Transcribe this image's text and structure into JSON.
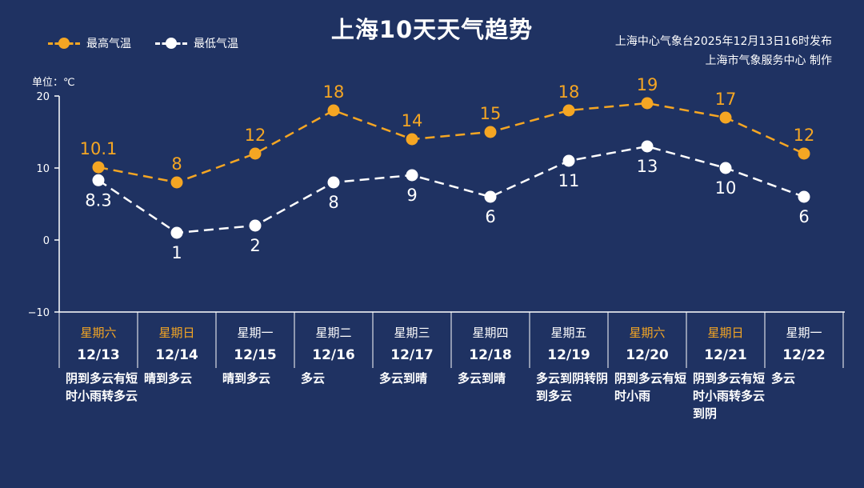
{
  "title": "上海10天天气趋势",
  "source": {
    "line1": "上海中心气象台2025年12月13日16时发布",
    "line2": "上海市气象服务中心 制作"
  },
  "unit_label": "单位：℃",
  "colors": {
    "background": "#1f3262",
    "high": "#f5a623",
    "low": "#ffffff",
    "weekend": "#f5a623",
    "axis": "#ffffff"
  },
  "chart_data": {
    "type": "line",
    "title": "上海10天天气趋势",
    "ylim": [
      -10,
      20
    ],
    "yticks": [
      "20",
      "10",
      "0",
      "−10"
    ],
    "grid": false,
    "legend": "top-left",
    "categories": [
      "12/13",
      "12/14",
      "12/15",
      "12/16",
      "12/17",
      "12/18",
      "12/19",
      "12/20",
      "12/21",
      "12/22"
    ],
    "series": [
      {
        "name": "最高气温",
        "values": [
          10.1,
          8,
          12,
          18,
          14,
          15,
          18,
          19,
          17,
          12
        ],
        "labels": [
          "10.1",
          "8",
          "12",
          "18",
          "14",
          "15",
          "18",
          "19",
          "17",
          "12"
        ]
      },
      {
        "name": "最低气温",
        "values": [
          8.3,
          1,
          2,
          8,
          9,
          6,
          11,
          13,
          10,
          6
        ],
        "labels": [
          "8.3",
          "1",
          "2",
          "8",
          "9",
          "6",
          "11",
          "13",
          "10",
          "6"
        ]
      }
    ]
  },
  "days": [
    {
      "weekday": "星期六",
      "date": "12/13",
      "desc": "阴到多云有短时小雨转多云",
      "weekend": true
    },
    {
      "weekday": "星期日",
      "date": "12/14",
      "desc": "晴到多云",
      "weekend": true
    },
    {
      "weekday": "星期一",
      "date": "12/15",
      "desc": "晴到多云",
      "weekend": false
    },
    {
      "weekday": "星期二",
      "date": "12/16",
      "desc": "多云",
      "weekend": false
    },
    {
      "weekday": "星期三",
      "date": "12/17",
      "desc": "多云到晴",
      "weekend": false
    },
    {
      "weekday": "星期四",
      "date": "12/18",
      "desc": "多云到晴",
      "weekend": false
    },
    {
      "weekday": "星期五",
      "date": "12/19",
      "desc": "多云到阴转阴到多云",
      "weekend": false
    },
    {
      "weekday": "星期六",
      "date": "12/20",
      "desc": "阴到多云有短时小雨",
      "weekend": true
    },
    {
      "weekday": "星期日",
      "date": "12/21",
      "desc": "阴到多云有短时小雨转多云到阴",
      "weekend": true
    },
    {
      "weekday": "星期一",
      "date": "12/22",
      "desc": "多云",
      "weekend": false
    }
  ]
}
